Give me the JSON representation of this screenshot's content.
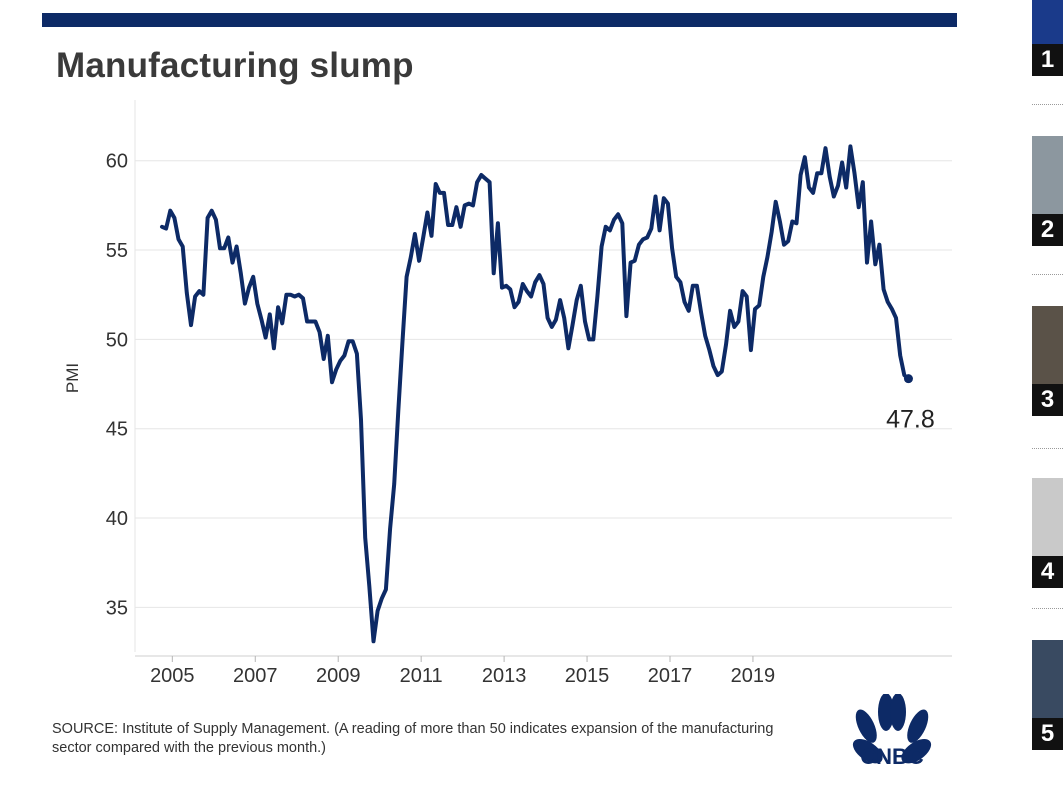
{
  "title": "Manufacturing slump",
  "source_note": "SOURCE: Institute of Supply Management. (A reading of more than 50 indicates expansion of the manufacturing sector compared with the previous month.)",
  "logo_text": "CNBC",
  "colors": {
    "top_bar": "#0d2a66",
    "line": "#0d2a66",
    "grid": "#e6e6e6"
  },
  "rail": [
    {
      "number": "1",
      "thumb": "#1a3a8a"
    },
    {
      "number": "2",
      "thumb": "#8c979f"
    },
    {
      "number": "3",
      "thumb": "#5a5248"
    },
    {
      "number": "4",
      "thumb": "#c9c9c9"
    },
    {
      "number": "5",
      "thumb": "#394a61"
    }
  ],
  "chart_data": {
    "type": "line",
    "title": "Manufacturing slump",
    "xlabel": "",
    "ylabel": "PMI",
    "ylim": [
      32.5,
      62
    ],
    "yticks": [
      35,
      40,
      45,
      50,
      55,
      60
    ],
    "xticks": [
      2005,
      2007,
      2009,
      2011,
      2013,
      2015,
      2017,
      2019
    ],
    "grid": true,
    "end_label": "47.8",
    "series": [
      {
        "points": [
          [
            2004.75,
            56.3
          ],
          [
            2004.85,
            56.2
          ],
          [
            2004.95,
            57.2
          ],
          [
            2005.05,
            56.8
          ],
          [
            2005.15,
            55.6
          ],
          [
            2005.25,
            55.2
          ],
          [
            2005.35,
            52.6
          ],
          [
            2005.45,
            50.8
          ],
          [
            2005.55,
            52.4
          ],
          [
            2005.65,
            52.7
          ],
          [
            2005.75,
            52.5
          ],
          [
            2005.85,
            56.8
          ],
          [
            2005.95,
            57.2
          ],
          [
            2006.05,
            56.7
          ],
          [
            2006.15,
            55.1
          ],
          [
            2006.25,
            55.1
          ],
          [
            2006.35,
            55.7
          ],
          [
            2006.45,
            54.3
          ],
          [
            2006.55,
            55.2
          ],
          [
            2006.65,
            53.7
          ],
          [
            2006.75,
            52.0
          ],
          [
            2006.85,
            52.9
          ],
          [
            2006.95,
            53.5
          ],
          [
            2007.05,
            52.0
          ],
          [
            2007.15,
            51.1
          ],
          [
            2007.25,
            50.1
          ],
          [
            2007.35,
            51.4
          ],
          [
            2007.45,
            49.5
          ],
          [
            2007.55,
            51.8
          ],
          [
            2007.65,
            50.9
          ],
          [
            2007.75,
            52.5
          ],
          [
            2007.85,
            52.5
          ],
          [
            2007.95,
            52.4
          ],
          [
            2008.05,
            52.5
          ],
          [
            2008.15,
            52.3
          ],
          [
            2008.25,
            51.0
          ],
          [
            2008.35,
            51.0
          ],
          [
            2008.45,
            51.0
          ],
          [
            2008.55,
            50.4
          ],
          [
            2008.65,
            48.9
          ],
          [
            2008.75,
            50.2
          ],
          [
            2008.85,
            47.6
          ],
          [
            2008.95,
            48.3
          ],
          [
            2009.05,
            48.8
          ],
          [
            2009.15,
            49.1
          ],
          [
            2009.25,
            49.9
          ],
          [
            2009.35,
            49.9
          ],
          [
            2009.45,
            49.2
          ],
          [
            2009.55,
            45.5
          ],
          [
            2009.65,
            38.9
          ],
          [
            2009.75,
            36.2
          ],
          [
            2009.85,
            33.1
          ],
          [
            2009.95,
            34.8
          ],
          [
            2010.05,
            35.5
          ],
          [
            2010.15,
            36.0
          ],
          [
            2010.25,
            39.4
          ],
          [
            2010.35,
            41.9
          ],
          [
            2010.45,
            46.0
          ],
          [
            2010.55,
            49.9
          ],
          [
            2010.65,
            53.5
          ],
          [
            2010.75,
            54.6
          ],
          [
            2010.85,
            55.9
          ],
          [
            2010.95,
            54.4
          ],
          [
            2011.05,
            55.7
          ],
          [
            2011.15,
            57.1
          ],
          [
            2011.25,
            55.8
          ],
          [
            2011.35,
            58.7
          ],
          [
            2011.45,
            58.2
          ],
          [
            2011.55,
            58.2
          ],
          [
            2011.65,
            56.4
          ],
          [
            2011.75,
            56.4
          ],
          [
            2011.85,
            57.4
          ],
          [
            2011.95,
            56.3
          ],
          [
            2012.05,
            57.5
          ],
          [
            2012.15,
            57.6
          ],
          [
            2012.25,
            57.5
          ],
          [
            2012.35,
            58.8
          ],
          [
            2012.45,
            59.2
          ],
          [
            2012.55,
            59.0
          ],
          [
            2012.65,
            58.8
          ],
          [
            2012.75,
            53.7
          ],
          [
            2012.85,
            56.5
          ],
          [
            2012.95,
            52.9
          ],
          [
            2013.05,
            53.0
          ],
          [
            2013.15,
            52.8
          ],
          [
            2013.25,
            51.8
          ],
          [
            2013.35,
            52.1
          ],
          [
            2013.45,
            53.1
          ],
          [
            2013.55,
            52.7
          ],
          [
            2013.65,
            52.4
          ],
          [
            2013.75,
            53.2
          ],
          [
            2013.85,
            53.6
          ],
          [
            2013.95,
            53.1
          ],
          [
            2014.05,
            51.2
          ],
          [
            2014.15,
            50.7
          ],
          [
            2014.25,
            51.1
          ],
          [
            2014.35,
            52.2
          ],
          [
            2014.45,
            51.2
          ],
          [
            2014.55,
            49.5
          ],
          [
            2014.65,
            50.8
          ],
          [
            2014.75,
            52.2
          ],
          [
            2014.85,
            53.0
          ],
          [
            2014.95,
            51.0
          ],
          [
            2015.05,
            50.0
          ],
          [
            2015.15,
            50.0
          ],
          [
            2015.25,
            52.4
          ],
          [
            2015.35,
            55.2
          ],
          [
            2015.45,
            56.3
          ],
          [
            2015.55,
            56.1
          ],
          [
            2015.65,
            56.7
          ],
          [
            2015.75,
            57.0
          ],
          [
            2015.85,
            56.5
          ],
          [
            2015.95,
            51.3
          ],
          [
            2016.05,
            54.3
          ],
          [
            2016.15,
            54.4
          ],
          [
            2016.25,
            55.3
          ],
          [
            2016.35,
            55.6
          ],
          [
            2016.45,
            55.7
          ],
          [
            2016.55,
            56.2
          ],
          [
            2016.65,
            58.0
          ],
          [
            2016.75,
            56.1
          ],
          [
            2016.85,
            57.9
          ],
          [
            2016.95,
            57.6
          ],
          [
            2017.05,
            55.1
          ],
          [
            2017.15,
            53.5
          ],
          [
            2017.25,
            53.2
          ],
          [
            2017.35,
            52.1
          ],
          [
            2017.45,
            51.6
          ],
          [
            2017.55,
            53.0
          ],
          [
            2017.65,
            53.0
          ],
          [
            2017.75,
            51.5
          ],
          [
            2017.85,
            50.2
          ],
          [
            2017.95,
            49.4
          ],
          [
            2018.05,
            48.5
          ],
          [
            2018.15,
            48.0
          ],
          [
            2018.25,
            48.2
          ],
          [
            2018.35,
            49.7
          ],
          [
            2018.45,
            51.6
          ],
          [
            2018.55,
            50.7
          ],
          [
            2018.65,
            51.0
          ],
          [
            2018.75,
            52.7
          ],
          [
            2018.85,
            52.4
          ],
          [
            2018.95,
            49.4
          ],
          [
            2019.05,
            51.7
          ],
          [
            2019.15,
            51.9
          ],
          [
            2019.25,
            53.5
          ],
          [
            2019.35,
            54.6
          ],
          [
            2019.45,
            56.0
          ],
          [
            2019.55,
            57.7
          ],
          [
            2019.65,
            56.6
          ],
          [
            2019.75,
            55.3
          ],
          [
            2019.85,
            55.5
          ],
          [
            2019.95,
            56.6
          ],
          [
            2020.05,
            56.5
          ],
          [
            2020.15,
            59.2
          ],
          [
            2020.25,
            60.2
          ],
          [
            2020.35,
            58.5
          ],
          [
            2020.45,
            58.2
          ],
          [
            2020.55,
            59.3
          ],
          [
            2020.65,
            59.3
          ],
          [
            2020.75,
            60.7
          ],
          [
            2020.85,
            59.1
          ],
          [
            2020.95,
            58.0
          ],
          [
            2021.05,
            58.6
          ],
          [
            2021.15,
            59.9
          ],
          [
            2021.25,
            58.5
          ],
          [
            2021.35,
            60.8
          ],
          [
            2021.45,
            59.3
          ],
          [
            2021.55,
            57.4
          ],
          [
            2021.65,
            58.8
          ],
          [
            2021.75,
            54.3
          ],
          [
            2021.85,
            56.6
          ],
          [
            2021.95,
            54.2
          ],
          [
            2022.05,
            55.3
          ],
          [
            2022.15,
            52.8
          ],
          [
            2022.25,
            52.1
          ],
          [
            2022.35,
            51.7
          ],
          [
            2022.45,
            51.2
          ],
          [
            2022.55,
            49.1
          ],
          [
            2022.65,
            48.0
          ],
          [
            2022.75,
            47.8
          ]
        ]
      }
    ]
  }
}
